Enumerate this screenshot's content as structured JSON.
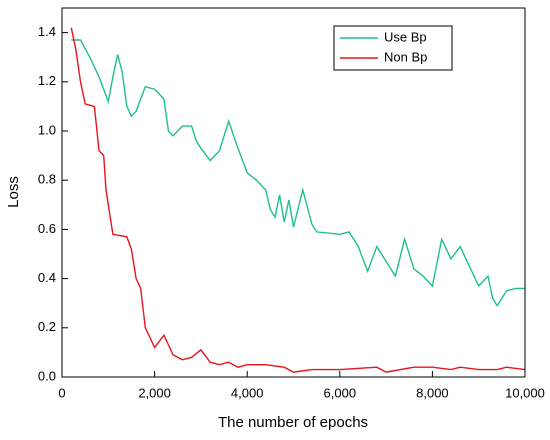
{
  "chart_data": {
    "type": "line",
    "xlabel": "The number of epochs",
    "ylabel": "Loss",
    "xlim": [
      0,
      10000
    ],
    "xticks": [
      0,
      {
        "value": 2000,
        "label": "2,000"
      },
      {
        "value": 4000,
        "label": "4,000"
      },
      {
        "value": 6000,
        "label": "6,000"
      },
      {
        "value": 8000,
        "label": "8,000"
      },
      {
        "value": 10000,
        "label": "10,000"
      }
    ],
    "ylim": [
      0,
      1.5
    ],
    "yticks": [
      {
        "value": 0,
        "label": "0.0"
      },
      0.2,
      0.4,
      0.6,
      0.8,
      {
        "value": 1,
        "label": "1.0"
      },
      1.2,
      1.4
    ],
    "legend": "upper right",
    "series": [
      {
        "name": "Use Bp",
        "color": "#1fbf8f",
        "x": [
          200,
          400,
          600,
          800,
          1000,
          1100,
          1200,
          1300,
          1400,
          1500,
          1600,
          1800,
          2000,
          2200,
          2300,
          2400,
          2600,
          2800,
          2900,
          3000,
          3200,
          3400,
          3600,
          3800,
          4000,
          4200,
          4400,
          4500,
          4600,
          4700,
          4800,
          4900,
          5000,
          5200,
          5400,
          5500,
          6000,
          6200,
          6400,
          6600,
          6800,
          7000,
          7200,
          7400,
          7600,
          7800,
          8000,
          8200,
          8400,
          8600,
          8800,
          9000,
          9200,
          9300,
          9400,
          9600,
          9800,
          10000
        ],
        "values": [
          1.37,
          1.37,
          1.3,
          1.22,
          1.12,
          1.22,
          1.31,
          1.24,
          1.1,
          1.06,
          1.08,
          1.18,
          1.17,
          1.13,
          1.0,
          0.98,
          1.02,
          1.02,
          0.96,
          0.93,
          0.88,
          0.92,
          1.04,
          0.93,
          0.83,
          0.8,
          0.76,
          0.68,
          0.65,
          0.74,
          0.63,
          0.72,
          0.61,
          0.76,
          0.62,
          0.59,
          0.58,
          0.59,
          0.53,
          0.43,
          0.53,
          0.47,
          0.41,
          0.56,
          0.44,
          0.41,
          0.37,
          0.56,
          0.48,
          0.53,
          0.45,
          0.37,
          0.41,
          0.32,
          0.29,
          0.35,
          0.36,
          0.36
        ]
      },
      {
        "name": "Non Bp",
        "color": "#e8141c",
        "x": [
          200,
          300,
          400,
          500,
          700,
          800,
          900,
          950,
          1000,
          1100,
          1400,
          1500,
          1600,
          1700,
          1800,
          1900,
          2000,
          2200,
          2400,
          2600,
          2800,
          3000,
          3200,
          3400,
          3600,
          3800,
          4000,
          4400,
          4800,
          5000,
          5400,
          6000,
          6800,
          7000,
          7600,
          8000,
          8400,
          8600,
          9000,
          9400,
          9600,
          10000
        ],
        "values": [
          1.42,
          1.33,
          1.2,
          1.11,
          1.1,
          0.92,
          0.9,
          0.76,
          0.7,
          0.58,
          0.57,
          0.52,
          0.4,
          0.36,
          0.2,
          0.16,
          0.12,
          0.17,
          0.09,
          0.07,
          0.08,
          0.11,
          0.06,
          0.05,
          0.06,
          0.04,
          0.05,
          0.05,
          0.04,
          0.02,
          0.03,
          0.03,
          0.04,
          0.02,
          0.04,
          0.04,
          0.03,
          0.04,
          0.03,
          0.03,
          0.04,
          0.03
        ]
      }
    ]
  }
}
